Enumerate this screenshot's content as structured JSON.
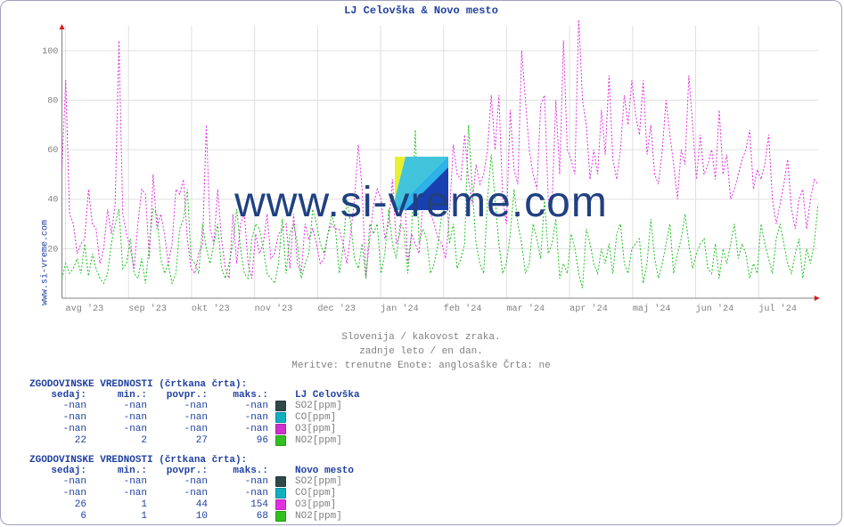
{
  "title": "LJ Celovška & Novo mesto",
  "side_label": "www.si-vreme.com",
  "watermark_text": "www.si-vreme.com",
  "caption_lines": [
    "Slovenija / kakovost zraka.",
    "zadnje leto / en dan.",
    "Meritve: trenutne  Enote: anglosaške  Črta: ne"
  ],
  "chart": {
    "type": "line",
    "background_color": "#ffffff",
    "grid_color": "#e0e0e0",
    "y": {
      "min": 0,
      "max": 110,
      "ticks": [
        20,
        40,
        60,
        80,
        100
      ],
      "label_fontsize": 10,
      "label_color": "#808080"
    },
    "x": {
      "labels": [
        "avg '23",
        "sep '23",
        "okt '23",
        "nov '23",
        "dec '23",
        "jan '24",
        "feb '24",
        "mar '24",
        "apr '24",
        "maj '24",
        "jun '24",
        "jul '24"
      ],
      "label_fontsize": 10,
      "label_color": "#808080"
    },
    "series": [
      {
        "name": "magenta",
        "color": "#e030e0",
        "dash": "2,2",
        "width": 1,
        "data": [
          52,
          88,
          34,
          30,
          18,
          22,
          24,
          44,
          30,
          28,
          14,
          20,
          36,
          26,
          38,
          104,
          34,
          26,
          20,
          12,
          30,
          44,
          42,
          16,
          50,
          28,
          34,
          26,
          14,
          22,
          44,
          42,
          48,
          24,
          12,
          10,
          18,
          22,
          70,
          28,
          22,
          44,
          24,
          12,
          8,
          34,
          14,
          30,
          34,
          14,
          8,
          26,
          18,
          22,
          34,
          16,
          18,
          26,
          28,
          30,
          12,
          34,
          14,
          10,
          30,
          24,
          28,
          22,
          14,
          16,
          26,
          30,
          28,
          28,
          22,
          14,
          26,
          40,
          62,
          44,
          8,
          24,
          38,
          44,
          40,
          24,
          30,
          48,
          22,
          26,
          50,
          14,
          26,
          22,
          18,
          38,
          40,
          34,
          30,
          24,
          22,
          16,
          34,
          62,
          50,
          48,
          66,
          48,
          38,
          54,
          46,
          50,
          60,
          82,
          60,
          82,
          40,
          30,
          76,
          52,
          46,
          100,
          80,
          60,
          50,
          44,
          78,
          82,
          40,
          38,
          80,
          50,
          104,
          60,
          56,
          50,
          114,
          80,
          70,
          48,
          60,
          50,
          76,
          58,
          90,
          56,
          48,
          60,
          82,
          70,
          88,
          74,
          66,
          88,
          58,
          70,
          50,
          46,
          60,
          80,
          66,
          54,
          40,
          60,
          54,
          90,
          70,
          48,
          66,
          50,
          54,
          60,
          48,
          76,
          50,
          58,
          40,
          44,
          50,
          56,
          60,
          68,
          44,
          52,
          48,
          54,
          66,
          40,
          30,
          38,
          46,
          56,
          36,
          28,
          40,
          44,
          28,
          40,
          48,
          46
        ],
        "y_max_ref": 120
      },
      {
        "name": "green",
        "color": "#20c020",
        "dash": "2,2",
        "width": 1,
        "data": [
          8,
          14,
          10,
          12,
          16,
          10,
          22,
          9,
          18,
          12,
          8,
          6,
          10,
          22,
          30,
          36,
          12,
          14,
          24,
          10,
          8,
          16,
          6,
          22,
          36,
          34,
          16,
          10,
          14,
          6,
          10,
          28,
          32,
          44,
          16,
          14,
          10,
          30,
          20,
          14,
          22,
          30,
          12,
          8,
          14,
          22,
          36,
          20,
          10,
          8,
          24,
          30,
          28,
          20,
          10,
          8,
          6,
          14,
          32,
          10,
          26,
          30,
          22,
          8,
          14,
          18,
          36,
          30,
          22,
          18,
          26,
          34,
          28,
          10,
          20,
          40,
          30,
          16,
          12,
          22,
          8,
          30,
          26,
          30,
          10,
          18,
          36,
          22,
          16,
          30,
          28,
          10,
          26,
          68,
          22,
          28,
          24,
          10,
          14,
          22,
          34,
          48,
          22,
          30,
          12,
          16,
          22,
          70,
          44,
          22,
          14,
          10,
          40,
          58,
          40,
          22,
          10,
          14,
          26,
          44,
          30,
          22,
          10,
          14,
          30,
          24,
          16,
          40,
          18,
          22,
          32,
          8,
          14,
          10,
          26,
          20,
          10,
          4,
          28,
          22,
          14,
          10,
          20,
          14,
          22,
          10,
          26,
          30,
          14,
          10,
          20,
          22,
          24,
          6,
          14,
          32,
          16,
          8,
          14,
          22,
          30,
          10,
          18,
          24,
          34,
          22,
          12,
          18,
          22,
          24,
          12,
          10,
          22,
          8,
          20,
          14,
          22,
          30,
          16,
          22,
          18,
          8,
          14,
          10,
          30,
          22,
          16,
          10,
          24,
          30,
          22,
          14,
          10,
          18,
          24,
          8,
          20,
          14,
          22,
          38
        ],
        "y_max_ref": 120
      }
    ]
  },
  "legends": [
    {
      "heading": "ZGODOVINSKE VREDNOSTI (črtkana črta):",
      "station": "LJ Celovška",
      "cols": [
        "sedaj:",
        "min.:",
        "povpr.:",
        "maks.:"
      ],
      "rows": [
        {
          "vals": [
            "-nan",
            "-nan",
            "-nan",
            "-nan"
          ],
          "swatch": "#304848",
          "label": "SO2[ppm]"
        },
        {
          "vals": [
            "-nan",
            "-nan",
            "-nan",
            "-nan"
          ],
          "swatch": "#10b0c0",
          "label": "CO[ppm]"
        },
        {
          "vals": [
            "-nan",
            "-nan",
            "-nan",
            "-nan"
          ],
          "swatch": "#d030d0",
          "label": "O3[ppm]"
        },
        {
          "vals": [
            "22",
            "2",
            "27",
            "96"
          ],
          "swatch": "#30c020",
          "label": "NO2[ppm]"
        }
      ]
    },
    {
      "heading": "ZGODOVINSKE VREDNOSTI (črtkana črta):",
      "station": "Novo mesto",
      "cols": [
        "sedaj:",
        "min.:",
        "povpr.:",
        "maks.:"
      ],
      "rows": [
        {
          "vals": [
            "-nan",
            "-nan",
            "-nan",
            "-nan"
          ],
          "swatch": "#304848",
          "label": "SO2[ppm]"
        },
        {
          "vals": [
            "-nan",
            "-nan",
            "-nan",
            "-nan"
          ],
          "swatch": "#10b0c0",
          "label": "CO[ppm]"
        },
        {
          "vals": [
            "26",
            "1",
            "44",
            "154"
          ],
          "swatch": "#e030e0",
          "label": "O3[ppm]"
        },
        {
          "vals": [
            "6",
            "1",
            "10",
            "68"
          ],
          "swatch": "#30c020",
          "label": "NO2[ppm]"
        }
      ]
    }
  ],
  "colors": {
    "frame_border": "#a0a0c0",
    "title": "#2040a0",
    "text_muted": "#808080",
    "value": "#2040a0"
  }
}
